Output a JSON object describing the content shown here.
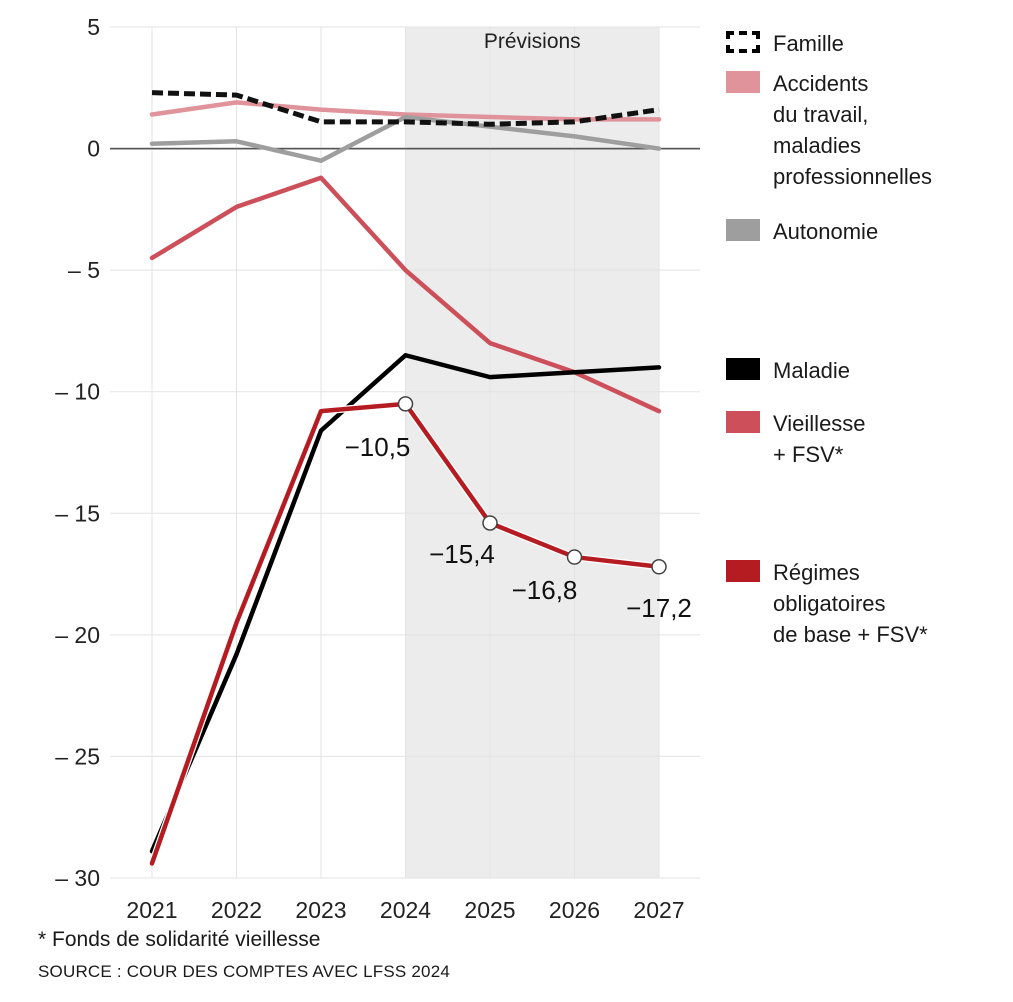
{
  "chart_data": {
    "type": "line",
    "title": "",
    "xlabel": "",
    "ylabel": "",
    "x": [
      "2021",
      "2022",
      "2023",
      "2024",
      "2025",
      "2026",
      "2027"
    ],
    "ylim": [
      -30,
      5
    ],
    "yticks": [
      5,
      0,
      -5,
      -10,
      -15,
      -20,
      -25,
      -30
    ],
    "ytick_labels": [
      "5",
      "0",
      "– 5",
      "– 10",
      "– 15",
      "– 20",
      "– 25",
      "– 30"
    ],
    "grid": true,
    "forecast_region": {
      "label": "Prévisions",
      "from": "2024",
      "to": "2027"
    },
    "legend_position": "right",
    "series": [
      {
        "name": "Famille",
        "color": "#111111",
        "style": "dashed",
        "values": [
          2.3,
          2.2,
          1.1,
          1.1,
          1.0,
          1.1,
          1.6
        ]
      },
      {
        "name": "Accidents du travail, maladies professionnelles",
        "color": "#e0939a",
        "style": "solid",
        "values": [
          1.4,
          1.9,
          1.6,
          1.4,
          1.3,
          1.2,
          1.2
        ]
      },
      {
        "name": "Autonomie",
        "color": "#9e9e9e",
        "style": "solid",
        "values": [
          0.2,
          0.3,
          -0.5,
          1.3,
          0.9,
          0.5,
          0.0
        ]
      },
      {
        "name": "Vieillesse + FSV*",
        "color": "#cc4f5a",
        "style": "solid",
        "values": [
          -4.5,
          -2.4,
          -1.2,
          -5.0,
          -8.0,
          -9.2,
          -10.8
        ]
      },
      {
        "name": "Maladie",
        "color": "#000000",
        "style": "solid",
        "values": [
          -28.9,
          -20.8,
          -11.6,
          -8.5,
          -9.4,
          -9.2,
          -9.0
        ]
      },
      {
        "name": "Régimes obligatoires de base + FSV*",
        "color": "#b51c22",
        "style": "solid",
        "values": [
          -29.4,
          -19.5,
          -10.8,
          -10.5,
          -15.4,
          -16.8,
          -17.2
        ],
        "markers_from_index": 3,
        "data_labels": [
          "",
          "",
          "",
          "−10,5",
          "−15,4",
          "−16,8",
          "−17,2"
        ]
      }
    ]
  },
  "legend": [
    {
      "label": "Famille"
    },
    {
      "label": "Accidents\ndu travail,\nmaladies\nprofessionnelles"
    },
    {
      "label": "Autonomie"
    },
    {
      "label": "Maladie"
    },
    {
      "label": "Vieillesse\n+ FSV*"
    },
    {
      "label": "Régimes\nobligatoires\nde base + FSV*"
    }
  ],
  "footnote": "* Fonds de solidarité vieillesse",
  "source": "SOURCE : COUR DES COMPTES AVEC LFSS 2024"
}
